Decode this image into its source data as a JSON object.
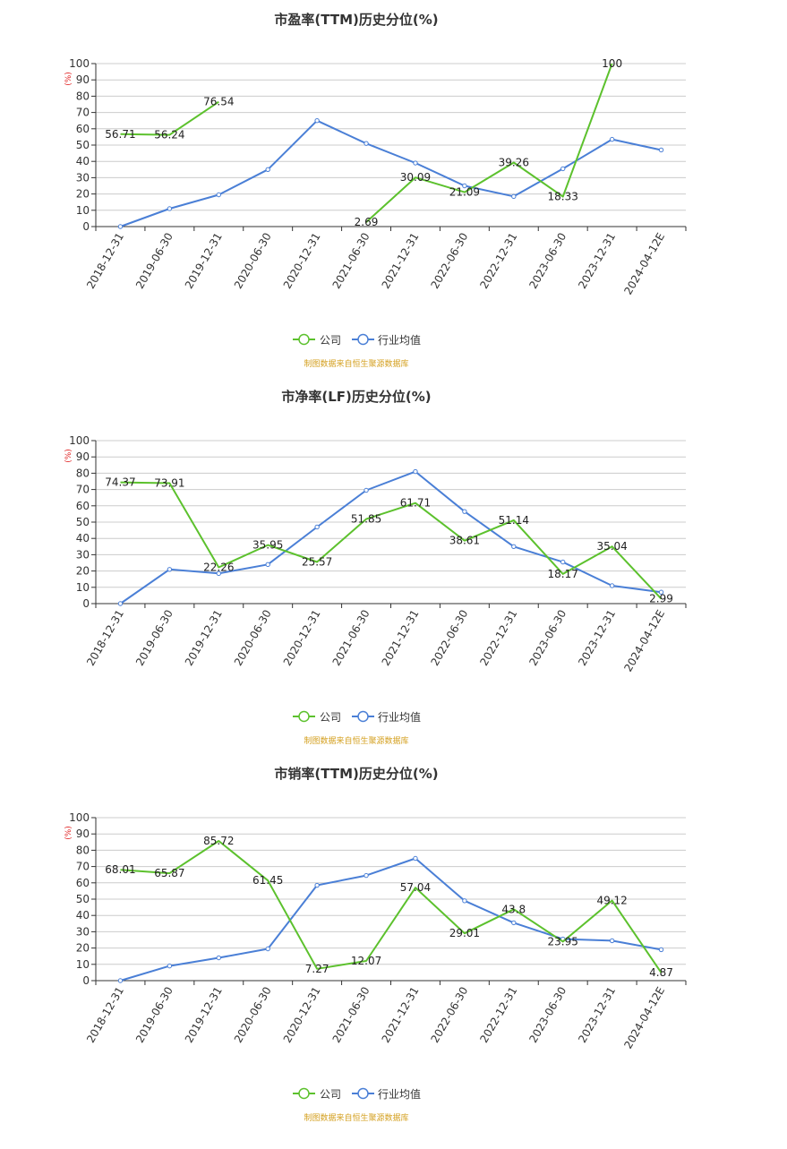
{
  "colors": {
    "company": "#5cc12d",
    "industry": "#4a7fd6",
    "grid": "#cccccc",
    "axis": "#333333",
    "text": "#333333",
    "unit": "#e02020",
    "source": "#d4a020"
  },
  "legend": {
    "company": "公司",
    "industry": "行业均值"
  },
  "source_note": "制图数据来自恒生聚源数据库",
  "chart_data": [
    {
      "type": "line",
      "title": "市盈率(TTM)历史分位(%)",
      "ylabel": "(%)",
      "ylim": [
        0,
        100
      ],
      "yticks": [
        0,
        10,
        20,
        30,
        40,
        50,
        60,
        70,
        80,
        90,
        100
      ],
      "legend_position": "bottom-center",
      "grid": true,
      "categories": [
        "2018-12-31",
        "2019-06-30",
        "2019-12-31",
        "2020-06-30",
        "2020-12-31",
        "2021-06-30",
        "2021-12-31",
        "2022-06-30",
        "2022-12-31",
        "2023-06-30",
        "2023-12-31",
        "2024-04-12E"
      ],
      "series": [
        {
          "name": "公司",
          "key": "company",
          "values": [
            56.71,
            56.24,
            76.54,
            null,
            null,
            2.69,
            30.09,
            21.09,
            39.26,
            18.33,
            100,
            null
          ]
        },
        {
          "name": "行业均值",
          "key": "industry",
          "values": [
            0,
            11,
            19.5,
            35,
            65,
            51,
            39,
            25,
            18.5,
            35.5,
            53.5,
            47
          ]
        }
      ]
    },
    {
      "type": "line",
      "title": "市净率(LF)历史分位(%)",
      "ylabel": "(%)",
      "ylim": [
        0,
        100
      ],
      "yticks": [
        0,
        10,
        20,
        30,
        40,
        50,
        60,
        70,
        80,
        90,
        100
      ],
      "legend_position": "bottom-center",
      "grid": true,
      "categories": [
        "2018-12-31",
        "2019-06-30",
        "2019-12-31",
        "2020-06-30",
        "2020-12-31",
        "2021-06-30",
        "2021-12-31",
        "2022-06-30",
        "2022-12-31",
        "2023-06-30",
        "2023-12-31",
        "2024-04-12E"
      ],
      "series": [
        {
          "name": "公司",
          "key": "company",
          "values": [
            74.37,
            73.91,
            22.26,
            35.95,
            25.57,
            51.85,
            61.71,
            38.61,
            51.14,
            18.17,
            35.04,
            2.99
          ]
        },
        {
          "name": "行业均值",
          "key": "industry",
          "values": [
            0,
            21,
            18.5,
            24,
            47,
            69.5,
            81,
            56.5,
            35,
            25.5,
            11,
            7
          ]
        }
      ]
    },
    {
      "type": "line",
      "title": "市销率(TTM)历史分位(%)",
      "ylabel": "(%)",
      "ylim": [
        0,
        100
      ],
      "yticks": [
        0,
        10,
        20,
        30,
        40,
        50,
        60,
        70,
        80,
        90,
        100
      ],
      "legend_position": "bottom-center",
      "grid": true,
      "categories": [
        "2018-12-31",
        "2019-06-30",
        "2019-12-31",
        "2020-06-30",
        "2020-12-31",
        "2021-06-30",
        "2021-12-31",
        "2022-06-30",
        "2022-12-31",
        "2023-06-30",
        "2023-12-31",
        "2024-04-12E"
      ],
      "series": [
        {
          "name": "公司",
          "key": "company",
          "values": [
            68.01,
            65.87,
            85.72,
            61.45,
            7.27,
            12.07,
            57.04,
            29.01,
            43.8,
            23.95,
            49.12,
            4.87
          ]
        },
        {
          "name": "行业均值",
          "key": "industry",
          "values": [
            0,
            9,
            14,
            19.5,
            58.5,
            64.5,
            75,
            49,
            35.5,
            25.5,
            24.5,
            19
          ]
        }
      ]
    }
  ]
}
